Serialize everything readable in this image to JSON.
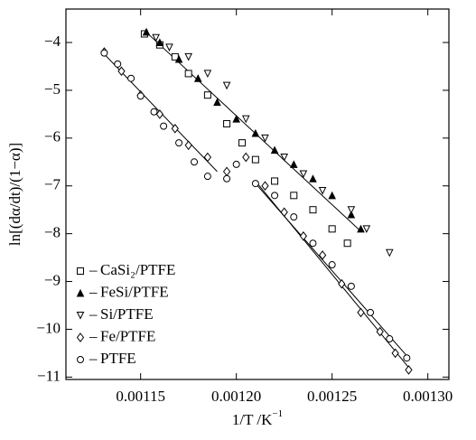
{
  "chart_data": {
    "type": "scatter",
    "xlabel": "1/T /K",
    "xlabel_sup": "−1",
    "ylabel": "ln[(dα/dt)/(1−α)]",
    "xlim": [
      0.001111,
      0.001311
    ],
    "ylim": [
      -11.05,
      -3.3
    ],
    "xticks": [
      0.00115,
      {
        "value": 0.0012,
        "label": "0.00120"
      },
      0.00125,
      {
        "value": 0.0013,
        "label": "0.00130"
      }
    ],
    "yticks": [
      {
        "value": -4,
        "label": "−4"
      },
      {
        "value": -5,
        "label": "−5"
      },
      {
        "value": -6,
        "label": "−6"
      },
      {
        "value": -7,
        "label": "−7"
      },
      {
        "value": -8,
        "label": "−8"
      },
      {
        "value": -9,
        "label": "−9"
      },
      {
        "value": -10,
        "label": "−10"
      },
      {
        "value": -11,
        "label": "−11"
      }
    ],
    "legend": "lower left",
    "legend_prefix": "–",
    "series": [
      {
        "name": "CaSi₂/PTFE",
        "marker": "square",
        "color": "#000000",
        "x": [
          0.001152,
          0.00116,
          0.001168,
          0.001175,
          0.001185,
          0.001195,
          0.001203,
          0.00121,
          0.00122,
          0.00123,
          0.00124,
          0.00125,
          0.001258
        ],
        "y": [
          -3.82,
          -4.05,
          -4.3,
          -4.65,
          -5.1,
          -5.7,
          -6.1,
          -6.45,
          -6.9,
          -7.2,
          -7.5,
          -7.9,
          -8.2
        ]
      },
      {
        "name": "FeSi/PTFE",
        "marker": "triangle-filled",
        "color": "#000000",
        "x": [
          0.001153,
          0.00116,
          0.00117,
          0.00118,
          0.00119,
          0.0012,
          0.00121,
          0.00122,
          0.00123,
          0.00124,
          0.00125,
          0.00126,
          0.001265
        ],
        "y": [
          -3.78,
          -4.0,
          -4.35,
          -4.75,
          -5.25,
          -5.6,
          -5.9,
          -6.25,
          -6.55,
          -6.85,
          -7.2,
          -7.6,
          -7.9
        ]
      },
      {
        "name": "Si/PTFE",
        "marker": "triangle-down",
        "color": "#000000",
        "x": [
          0.001158,
          0.001165,
          0.001175,
          0.001185,
          0.001195,
          0.001205,
          0.001215,
          0.001225,
          0.001235,
          0.001245,
          0.00126,
          0.001268,
          0.00128
        ],
        "y": [
          -3.9,
          -4.1,
          -4.3,
          -4.65,
          -4.9,
          -5.6,
          -6.0,
          -6.4,
          -6.75,
          -7.1,
          -7.5,
          -7.9,
          -8.4
        ]
      },
      {
        "name": "Fe/PTFE",
        "marker": "diamond",
        "color": "#000000",
        "x": [
          0.001131,
          0.00114,
          0.00115,
          0.00116,
          0.001168,
          0.001175,
          0.001185,
          0.001195,
          0.001205,
          0.001215,
          0.001225,
          0.001235,
          0.001245,
          0.001255,
          0.001265,
          0.001275,
          0.001283,
          0.00129
        ],
        "y": [
          -4.2,
          -4.6,
          -5.1,
          -5.5,
          -5.8,
          -6.15,
          -6.4,
          -6.7,
          -6.4,
          -7.0,
          -7.55,
          -8.05,
          -8.45,
          -9.05,
          -9.65,
          -10.05,
          -10.5,
          -10.85
        ]
      },
      {
        "name": "PTFE",
        "marker": "circle",
        "color": "#000000",
        "x": [
          0.001131,
          0.001138,
          0.001145,
          0.00115,
          0.001157,
          0.001162,
          0.00117,
          0.001178,
          0.001185,
          0.001195,
          0.0012,
          0.00121,
          0.00122,
          0.00123,
          0.00124,
          0.00125,
          0.00126,
          0.00127,
          0.00128,
          0.001289
        ],
        "y": [
          -4.22,
          -4.45,
          -4.75,
          -5.12,
          -5.45,
          -5.75,
          -6.1,
          -6.5,
          -6.8,
          -6.85,
          -6.55,
          -6.95,
          -7.2,
          -7.65,
          -8.2,
          -8.65,
          -9.1,
          -9.65,
          -10.2,
          -10.6
        ]
      }
    ],
    "fit_lines": [
      {
        "x": [
          0.001152,
          0.001265
        ],
        "y": [
          -3.75,
          -7.95
        ]
      },
      {
        "x": [
          0.00113,
          0.00119
        ],
        "y": [
          -4.2,
          -6.7
        ]
      },
      {
        "x": [
          0.00121,
          0.00129
        ],
        "y": [
          -6.9,
          -10.8
        ]
      },
      {
        "x": [
          0.00121,
          0.00129
        ],
        "y": [
          -6.95,
          -10.6
        ]
      }
    ]
  }
}
